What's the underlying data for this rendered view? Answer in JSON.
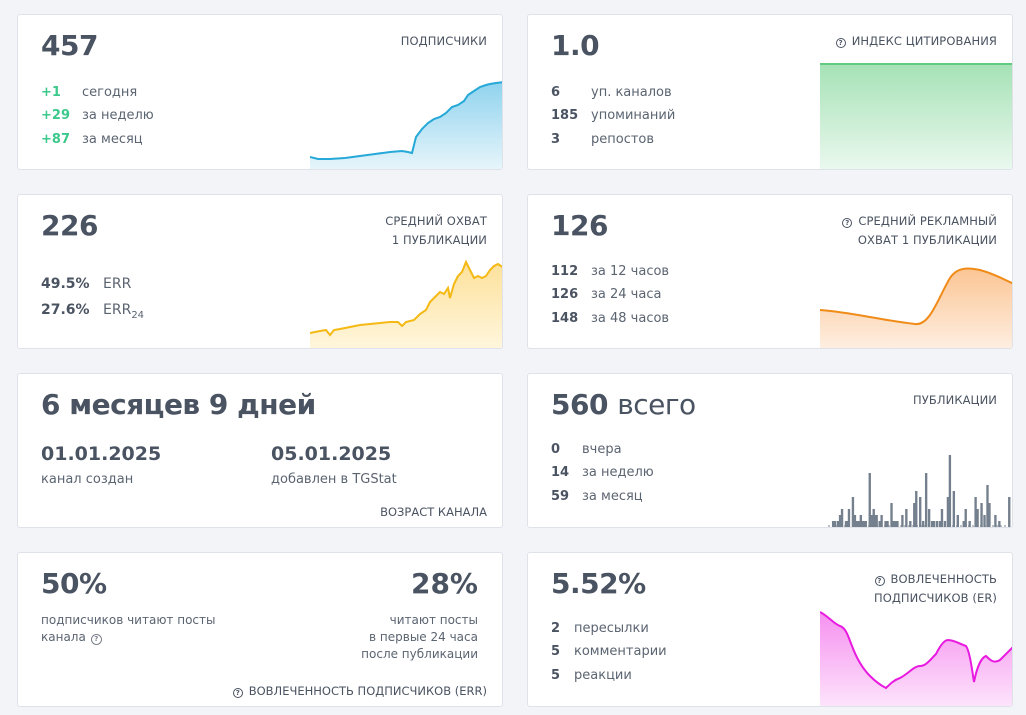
{
  "subscribers": {
    "value": "457",
    "label": "ПОДПИСЧИКИ",
    "rows": [
      {
        "n": "+1",
        "t": "сегодня"
      },
      {
        "n": "+29",
        "t": "за неделю"
      },
      {
        "n": "+87",
        "t": "за месяц"
      }
    ],
    "color": "#26a9d8"
  },
  "citation": {
    "value": "1.0",
    "label": "ИНДЕКС ЦИТИРОВАНИЯ",
    "rows": [
      {
        "n": "6",
        "t": "уп. каналов"
      },
      {
        "n": "185",
        "t": "упоминаний"
      },
      {
        "n": "3",
        "t": "репостов"
      }
    ],
    "color": "#4cc26f"
  },
  "avg_reach": {
    "value": "226",
    "label_line1": "СРЕДНИЙ ОХВАТ",
    "label_line2": "1 ПУБЛИКАЦИИ",
    "rows": [
      {
        "n": "49.5%",
        "t": "ERR"
      },
      {
        "n": "27.6%",
        "t": "ERR",
        "sub": "24"
      }
    ],
    "color": "#f5b914"
  },
  "ad_reach": {
    "value": "126",
    "label_line1": "СРЕДНИЙ РЕКЛАМНЫЙ",
    "label_line2": "ОХВАТ 1 ПУБЛИКАЦИИ",
    "rows": [
      {
        "n": "112",
        "t": "за 12 часов"
      },
      {
        "n": "126",
        "t": "за 24 часа"
      },
      {
        "n": "148",
        "t": "за 48 часов"
      }
    ],
    "color": "#f08b18"
  },
  "age": {
    "value": "6 месяцев 9 дней",
    "created_date": "01.01.2025",
    "created_label": "канал создан",
    "added_date": "05.01.2025",
    "added_label": "добавлен в TGStat",
    "label": "ВОЗРАСТ КАНАЛА"
  },
  "publications": {
    "value": "560",
    "suffix": "всего",
    "label": "ПУБЛИКАЦИИ",
    "rows": [
      {
        "n": "0",
        "t": "вчера"
      },
      {
        "n": "14",
        "t": "за неделю"
      },
      {
        "n": "59",
        "t": "за месяц"
      }
    ],
    "bars": [
      0,
      0,
      0,
      0,
      1,
      0,
      1,
      0,
      0,
      1,
      0,
      2,
      0,
      3,
      0,
      0,
      0,
      1,
      1,
      0,
      3,
      0,
      0,
      0,
      5,
      0,
      2,
      0,
      1,
      0,
      1,
      0,
      2,
      1,
      0,
      1,
      0,
      1,
      0,
      0,
      0,
      9,
      0,
      2,
      0,
      3,
      2,
      0,
      2,
      0,
      0,
      1,
      0,
      2,
      0,
      0,
      0,
      1,
      0,
      1,
      0,
      0,
      0,
      4,
      0,
      1,
      0,
      1,
      0,
      1,
      0,
      0,
      0,
      0,
      2,
      0,
      0,
      0,
      3,
      0,
      0,
      0,
      1,
      0,
      0,
      0,
      4,
      0,
      6,
      0,
      0,
      0,
      5,
      0,
      0,
      1,
      0,
      0,
      9,
      0,
      0,
      3,
      0,
      0,
      1,
      0,
      1,
      0,
      0,
      1,
      0,
      0,
      1,
      0,
      3,
      0,
      0,
      1,
      0,
      0,
      5,
      0,
      12,
      0,
      0,
      0,
      6,
      0,
      0,
      0,
      2,
      0,
      0,
      0,
      0,
      0,
      1,
      0,
      3,
      0,
      0,
      0,
      1,
      0,
      0,
      0,
      0,
      0,
      5,
      0,
      3,
      0,
      0,
      0,
      4,
      0,
      0,
      2,
      0,
      0,
      7,
      0,
      4,
      0,
      0,
      0,
      0,
      0,
      2,
      0,
      0,
      0,
      1,
      0,
      0,
      0,
      0,
      0,
      0,
      0,
      0,
      0,
      5,
      0,
      0,
      0,
      1,
      0
    ],
    "color": "#75808e"
  },
  "err": {
    "value1": "50%",
    "text1": "подписчиков читают посты канала",
    "value2": "28%",
    "text2_line1": "читают посты",
    "text2_line2": "в первые 24 часа",
    "text2_line3": "после публикации",
    "label": "ВОВЛЕЧЕННОСТЬ ПОДПИСЧИКОВ (ERR)"
  },
  "er": {
    "value": "5.52%",
    "label_line1": "ВОВЛЕЧЕННОСТЬ",
    "label_line2": "ПОДПИСЧИКОВ (ER)",
    "rows": [
      {
        "n": "2",
        "t": "пересылки"
      },
      {
        "n": "5",
        "t": "комментарии"
      },
      {
        "n": "5",
        "t": "реакции"
      }
    ],
    "color": "#e81ae0"
  }
}
